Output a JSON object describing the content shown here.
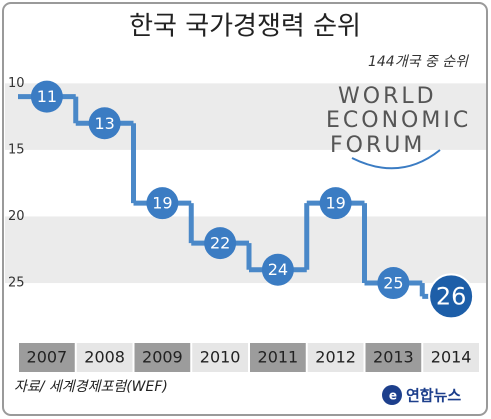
{
  "chart_data": {
    "type": "step",
    "title": "한국 국가경쟁력 순위",
    "subtitle": "144개국 중 순위",
    "logo": [
      "WORLD",
      "ECONOMIC",
      "FORUM"
    ],
    "categories": [
      "2007",
      "2008",
      "2009",
      "2010",
      "2011",
      "2012",
      "2013",
      "2014"
    ],
    "values": [
      11,
      13,
      19,
      22,
      24,
      19,
      25,
      26
    ],
    "color": "#4a88c8",
    "marker_color": "#3b7cc3",
    "highlight_color": "#1d5ea8",
    "ylim": [
      9,
      28
    ],
    "yticks": [
      10,
      15,
      20,
      25
    ],
    "y_inverted": true,
    "source": "자료/ 세계경제포럼(WEF)",
    "credit": "연합뉴스"
  }
}
